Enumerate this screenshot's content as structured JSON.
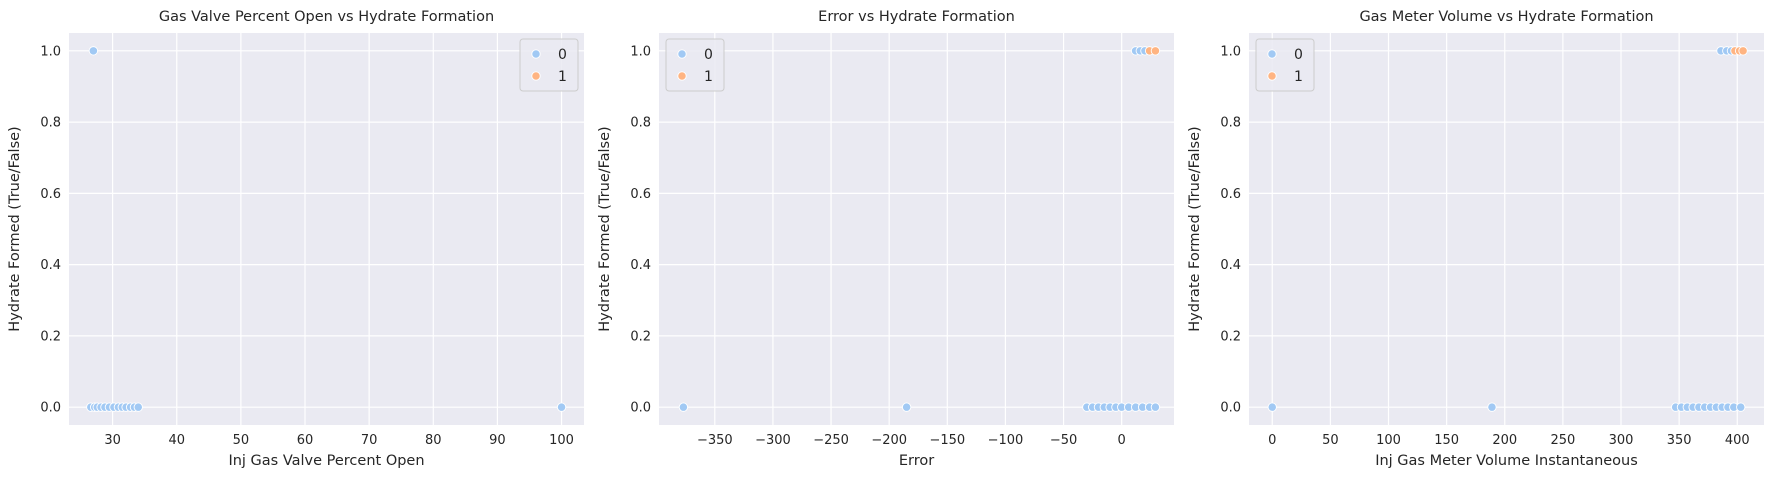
{
  "figure": {
    "colors": {
      "plot_background": "#eaeaf2",
      "grid": "#ffffff",
      "text": "#262626",
      "series_0": "#a1c9f4",
      "series_1": "#ffb482",
      "legend_frame": "#cccccc"
    }
  },
  "chart_data": [
    {
      "type": "scatter",
      "title": "Gas Valve Percent Open vs Hydrate Formation",
      "xlabel": "Inj Gas Valve Percent Open",
      "ylabel": "Hydrate Formed (True/False)",
      "xlim": [
        23.2,
        103.5
      ],
      "ylim": [
        -0.05,
        1.05
      ],
      "xticks": [
        30,
        40,
        50,
        60,
        70,
        80,
        90,
        100
      ],
      "xtick_labels": [
        "30",
        "40",
        "50",
        "60",
        "70",
        "80",
        "90",
        "100"
      ],
      "yticks": [
        0.0,
        0.2,
        0.4,
        0.6,
        0.8,
        1.0
      ],
      "ytick_labels": [
        "0.0",
        "0.2",
        "0.4",
        "0.6",
        "0.8",
        "1.0"
      ],
      "grid": true,
      "legend": {
        "position": "upper-right",
        "entries": [
          "0",
          "1"
        ]
      },
      "series": [
        {
          "name": "0",
          "color": "#a1c9f4",
          "points": [
            [
              27.0,
              1
            ],
            [
              26.6,
              0
            ],
            [
              27.2,
              0
            ],
            [
              27.6,
              0
            ],
            [
              28.2,
              0
            ],
            [
              28.8,
              0
            ],
            [
              29.5,
              0
            ],
            [
              30.2,
              0
            ],
            [
              30.9,
              0
            ],
            [
              31.5,
              0
            ],
            [
              32.1,
              0
            ],
            [
              32.8,
              0
            ],
            [
              33.4,
              0
            ],
            [
              34.0,
              0
            ],
            [
              100.0,
              0
            ]
          ]
        },
        {
          "name": "1",
          "color": "#ffb482",
          "points": []
        }
      ]
    },
    {
      "type": "scatter",
      "title": "Error vs Hydrate Formation",
      "xlabel": "Error",
      "ylabel": "Hydrate Formed (True/False)",
      "xlim": [
        -398,
        45
      ],
      "ylim": [
        -0.05,
        1.05
      ],
      "xticks": [
        -350,
        -300,
        -250,
        -200,
        -150,
        -100,
        -50,
        0
      ],
      "xtick_labels": [
        "−350",
        "−300",
        "−250",
        "−200",
        "−150",
        "−100",
        "−50",
        "0"
      ],
      "yticks": [
        0.0,
        0.2,
        0.4,
        0.6,
        0.8,
        1.0
      ],
      "ytick_labels": [
        "0.0",
        "0.2",
        "0.4",
        "0.6",
        "0.8",
        "1.0"
      ],
      "grid": true,
      "legend": {
        "position": "upper-left",
        "entries": [
          "0",
          "1"
        ]
      },
      "series": [
        {
          "name": "0",
          "color": "#a1c9f4",
          "points": [
            [
              -377,
              0
            ],
            [
              -185,
              0
            ],
            [
              -30,
              0
            ],
            [
              -25,
              0
            ],
            [
              -20,
              0
            ],
            [
              -15,
              0
            ],
            [
              -10,
              0
            ],
            [
              -5,
              0
            ],
            [
              0,
              0
            ],
            [
              6,
              0
            ],
            [
              12,
              0
            ],
            [
              18,
              0
            ],
            [
              24,
              0
            ],
            [
              29,
              0
            ],
            [
              12,
              1
            ],
            [
              16,
              1
            ],
            [
              20,
              1
            ]
          ]
        },
        {
          "name": "1",
          "color": "#ffb482",
          "points": [
            [
              24,
              1
            ],
            [
              29,
              1
            ]
          ]
        }
      ]
    },
    {
      "type": "scatter",
      "title": "Gas Meter Volume vs Hydrate Formation",
      "xlabel": "Inj Gas Meter Volume Instantaneous",
      "ylabel": "Hydrate Formed (True/False)",
      "xlim": [
        -20,
        423
      ],
      "ylim": [
        -0.05,
        1.05
      ],
      "xticks": [
        0,
        50,
        100,
        150,
        200,
        250,
        300,
        350,
        400
      ],
      "xtick_labels": [
        "0",
        "50",
        "100",
        "150",
        "200",
        "250",
        "300",
        "350",
        "400"
      ],
      "yticks": [
        0.0,
        0.2,
        0.4,
        0.6,
        0.8,
        1.0
      ],
      "ytick_labels": [
        "0.0",
        "0.2",
        "0.4",
        "0.6",
        "0.8",
        "1.0"
      ],
      "grid": true,
      "legend": {
        "position": "upper-left",
        "entries": [
          "0",
          "1"
        ]
      },
      "series": [
        {
          "name": "0",
          "color": "#a1c9f4",
          "points": [
            [
              0,
              0
            ],
            [
              189,
              0
            ],
            [
              347,
              0
            ],
            [
              352,
              0
            ],
            [
              357,
              0
            ],
            [
              362,
              0
            ],
            [
              367,
              0
            ],
            [
              372,
              0
            ],
            [
              377,
              0
            ],
            [
              382,
              0
            ],
            [
              387,
              0
            ],
            [
              392,
              0
            ],
            [
              397,
              0
            ],
            [
              403,
              0
            ],
            [
              386,
              1
            ],
            [
              391,
              1
            ],
            [
              395,
              1
            ]
          ]
        },
        {
          "name": "1",
          "color": "#ffb482",
          "points": [
            [
              398,
              1
            ],
            [
              402,
              1
            ],
            [
              405,
              1
            ]
          ]
        }
      ]
    }
  ]
}
